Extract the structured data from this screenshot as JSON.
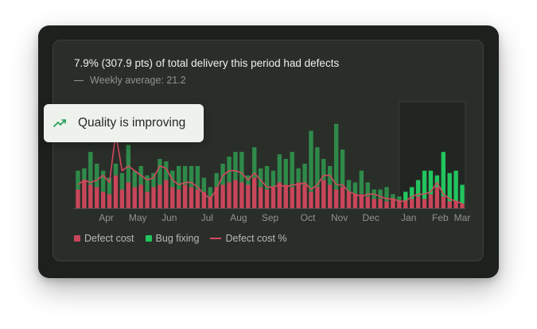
{
  "header": {
    "title": "7.9% (307.9 pts) of total delivery this period had defects",
    "weekly_average": "Weekly average: 21.2"
  },
  "tooltip": {
    "icon": "trending-up-icon",
    "text": "Quality is improving"
  },
  "legend": {
    "defect_cost": "Defect cost",
    "bug_fixing": "Bug fixing",
    "defect_cost_pct": "Defect cost %"
  },
  "colors": {
    "defect_cost": "#c8465a",
    "bug_fixing": "#2f8a4a",
    "bug_fixing_highlight": "#22c55e",
    "line": "#d24a5e",
    "tooltip_icon": "#1f9d55"
  },
  "chart_data": {
    "type": "bar",
    "stacked": true,
    "title": "7.9% (307.9 pts) of total delivery this period had defects",
    "subtitle": "Weekly average: 21.2",
    "x_tick_labels": [
      "Apr",
      "May",
      "Jun",
      "Jul",
      "Aug",
      "Sep",
      "Oct",
      "Nov",
      "Dec",
      "Jan",
      "Feb",
      "Mar"
    ],
    "highlight_range_start_index": 52,
    "series": [
      {
        "name": "Defect cost",
        "values": [
          8,
          12,
          10,
          9,
          7,
          6,
          14,
          8,
          11,
          9,
          10,
          7,
          9,
          10,
          12,
          9,
          8,
          10,
          9,
          8,
          7,
          5,
          9,
          10,
          11,
          12,
          11,
          10,
          13,
          9,
          8,
          9,
          11,
          10,
          9,
          11,
          10,
          7,
          9,
          12,
          10,
          8,
          9,
          7,
          6,
          6,
          5,
          4,
          4,
          3,
          4,
          3,
          3,
          4,
          5,
          4,
          6,
          9,
          5,
          3,
          3,
          2
        ]
      },
      {
        "name": "Bug fixing",
        "values": [
          8,
          5,
          14,
          10,
          9,
          7,
          5,
          7,
          16,
          7,
          8,
          7,
          6,
          11,
          8,
          7,
          10,
          8,
          9,
          10,
          6,
          4,
          6,
          9,
          11,
          12,
          13,
          4,
          13,
          8,
          10,
          7,
          12,
          11,
          15,
          6,
          9,
          26,
          17,
          9,
          8,
          28,
          16,
          5,
          5,
          10,
          6,
          4,
          4,
          6,
          2,
          2,
          4,
          5,
          7,
          12,
          10,
          5,
          19,
          12,
          13,
          8
        ]
      },
      {
        "name": "Defect cost %",
        "values": [
          10,
          12,
          11,
          12,
          14,
          11,
          32,
          16,
          18,
          16,
          14,
          12,
          13,
          18,
          17,
          12,
          10,
          11,
          11,
          9,
          6,
          4,
          8,
          14,
          16,
          16,
          15,
          12,
          15,
          12,
          9,
          9,
          10,
          9,
          10,
          10,
          11,
          8,
          10,
          14,
          14,
          10,
          10,
          7,
          6,
          5,
          6,
          6,
          5,
          4,
          4,
          3,
          3,
          5,
          6,
          6,
          7,
          11,
          6,
          4,
          3,
          2
        ]
      }
    ]
  }
}
